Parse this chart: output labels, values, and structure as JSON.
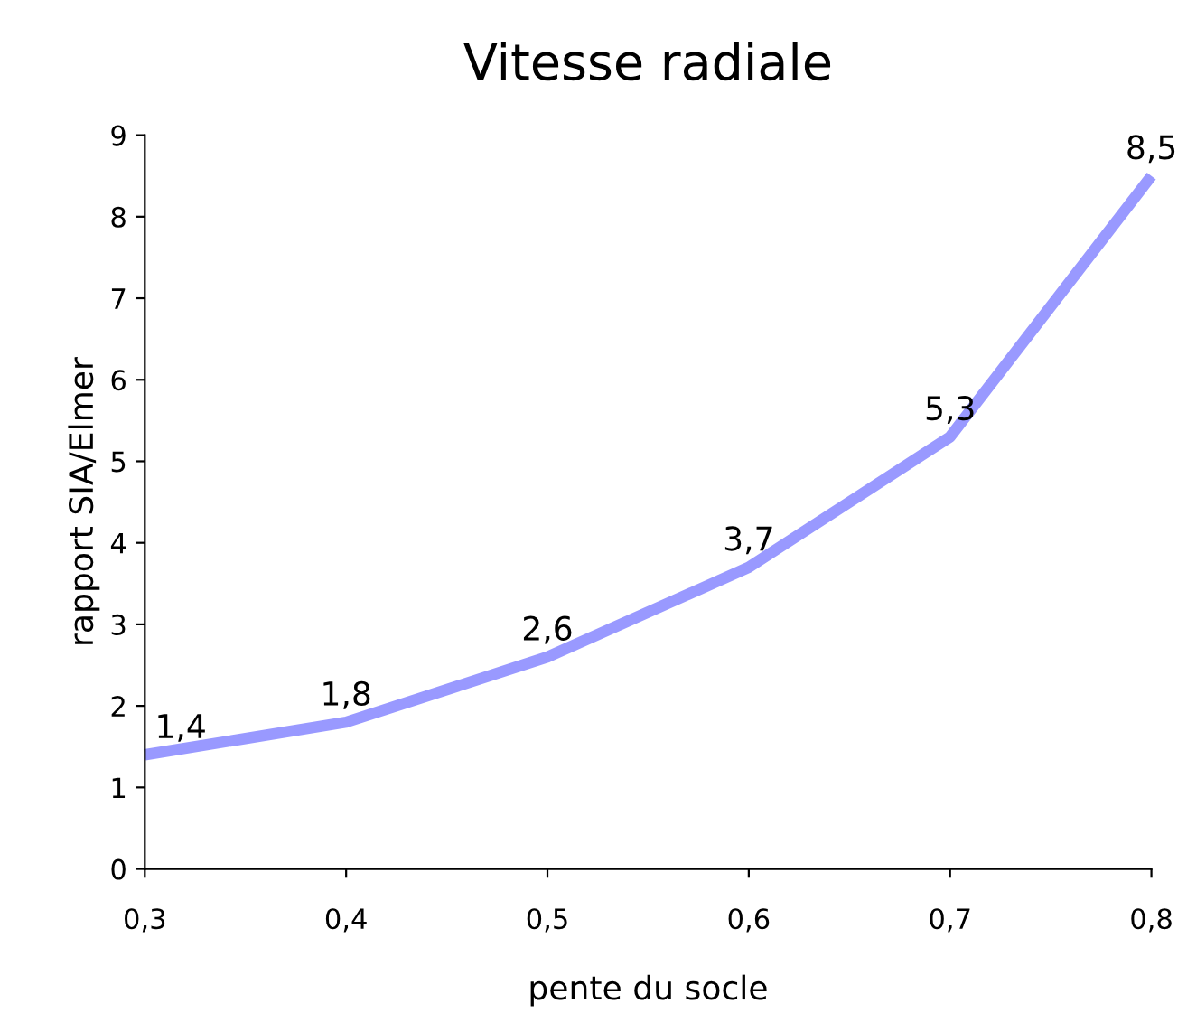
{
  "chart_data": {
    "type": "line",
    "title": "Vitesse radiale",
    "xlabel": "pente du socle",
    "ylabel": "rapport SIA/Elmer",
    "x": [
      0.3,
      0.4,
      0.5,
      0.6,
      0.7,
      0.8
    ],
    "series": [
      {
        "color": "#9999ff",
        "values": [
          1.4,
          1.8,
          2.6,
          3.7,
          5.3,
          8.5
        ],
        "value_labels": [
          "1,4",
          "1,8",
          "2,6",
          "3,7",
          "5,3",
          "8,5"
        ]
      }
    ],
    "xlim": [
      0.3,
      0.8
    ],
    "ylim": [
      0,
      9
    ],
    "xticks": [
      {
        "value": 0.3,
        "label": "0,3"
      },
      {
        "value": 0.4,
        "label": "0,4"
      },
      {
        "value": 0.5,
        "label": "0,5"
      },
      {
        "value": 0.6,
        "label": "0,6"
      },
      {
        "value": 0.7,
        "label": "0,7"
      },
      {
        "value": 0.8,
        "label": "0,8"
      }
    ],
    "yticks": [
      0,
      1,
      2,
      3,
      4,
      5,
      6,
      7,
      8,
      9
    ],
    "grid": false,
    "legend": false,
    "marker": "none",
    "line_style": "solid"
  }
}
